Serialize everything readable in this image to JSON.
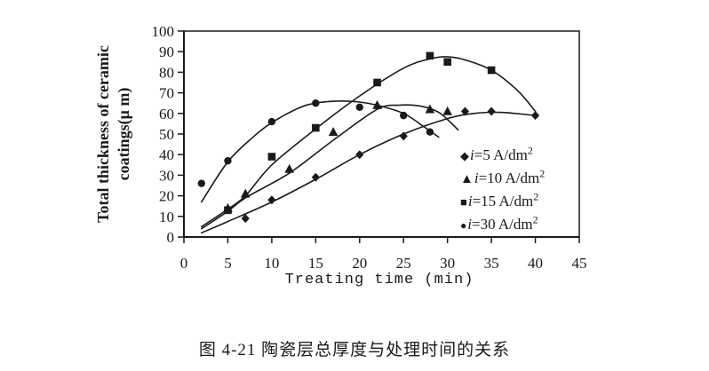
{
  "figure": {
    "caption": "图 4-21 陶瓷层总厚度与处理时间的关系"
  },
  "chart_data": {
    "type": "scatter",
    "title": "",
    "xlabel": "Treating time (min)",
    "ylabel": "Total thickness of ceramic coatings(μ m)",
    "ylabel_line1": "Total thickness of ceramic",
    "ylabel_line2": "coatings(μ m)",
    "xlim": [
      0,
      45
    ],
    "ylim": [
      0,
      100
    ],
    "x_ticks": [
      0,
      5,
      10,
      15,
      20,
      25,
      30,
      35,
      40,
      45
    ],
    "y_ticks": [
      0,
      10,
      20,
      30,
      40,
      50,
      60,
      70,
      80,
      90,
      100
    ],
    "grid": false,
    "legend_position": "inside lower-right",
    "axis_color": "#1a1a1a",
    "series": [
      {
        "id": "i5",
        "name": "i=5 A/dm2",
        "marker": "diamond",
        "legend_var": "i",
        "legend_text": "=5 A/dm",
        "legend_sup": "2",
        "points": [
          [
            7,
            9
          ],
          [
            10,
            18
          ],
          [
            15,
            29
          ],
          [
            20,
            40
          ],
          [
            25,
            49
          ],
          [
            32,
            61
          ],
          [
            35,
            61
          ],
          [
            40,
            59
          ]
        ],
        "trend": [
          [
            2,
            2
          ],
          [
            5,
            7.5
          ],
          [
            10,
            17
          ],
          [
            15,
            28
          ],
          [
            20,
            40
          ],
          [
            25,
            50
          ],
          [
            30,
            57.5
          ],
          [
            33,
            60
          ],
          [
            36,
            60.5
          ],
          [
            40,
            59
          ]
        ]
      },
      {
        "id": "i10",
        "name": "i=10 A/dm2",
        "marker": "triangle",
        "legend_var": "i",
        "legend_text": "=10 A/dm",
        "legend_sup": "2",
        "points": [
          [
            5,
            14
          ],
          [
            7,
            21
          ],
          [
            12,
            33
          ],
          [
            17,
            51
          ],
          [
            22,
            64
          ],
          [
            28,
            62
          ],
          [
            30,
            61
          ]
        ],
        "trend": [
          [
            2,
            4
          ],
          [
            5,
            12.5
          ],
          [
            7,
            19
          ],
          [
            12,
            31
          ],
          [
            17,
            47
          ],
          [
            22,
            62
          ],
          [
            24.5,
            64
          ],
          [
            27,
            63.5
          ],
          [
            29,
            60.5
          ],
          [
            30.5,
            55
          ],
          [
            31.2,
            52
          ]
        ]
      },
      {
        "id": "i15",
        "name": "i=15 A/dm2",
        "marker": "square",
        "legend_var": "i",
        "legend_text": "=15 A/dm",
        "legend_sup": "2",
        "points": [
          [
            5,
            13
          ],
          [
            10,
            39
          ],
          [
            15,
            53
          ],
          [
            22,
            75
          ],
          [
            28,
            88
          ],
          [
            30,
            85
          ],
          [
            35,
            81
          ]
        ],
        "trend": [
          [
            2,
            5
          ],
          [
            5,
            13.5
          ],
          [
            7,
            20
          ],
          [
            10,
            35
          ],
          [
            15,
            52.5
          ],
          [
            20,
            68.5
          ],
          [
            25,
            82
          ],
          [
            28,
            86.5
          ],
          [
            30,
            87.5
          ],
          [
            32,
            86
          ],
          [
            35,
            81
          ],
          [
            38,
            71
          ],
          [
            40,
            61
          ]
        ]
      },
      {
        "id": "i30",
        "name": "i=30 A/dm2",
        "marker": "circle",
        "legend_var": "i",
        "legend_text": "=30 A/dm",
        "legend_sup": "2",
        "points": [
          [
            2,
            26
          ],
          [
            5,
            37
          ],
          [
            10,
            56
          ],
          [
            15,
            65
          ],
          [
            20,
            63
          ],
          [
            25,
            59
          ],
          [
            28,
            51
          ]
        ],
        "trend": [
          [
            2,
            17
          ],
          [
            5,
            36.5
          ],
          [
            8,
            49
          ],
          [
            10,
            55.5
          ],
          [
            13,
            62.5
          ],
          [
            15,
            65
          ],
          [
            17.5,
            66
          ],
          [
            20,
            65.5
          ],
          [
            22,
            64
          ],
          [
            25,
            60
          ],
          [
            27,
            54.5
          ],
          [
            29,
            48.5
          ]
        ]
      }
    ]
  }
}
